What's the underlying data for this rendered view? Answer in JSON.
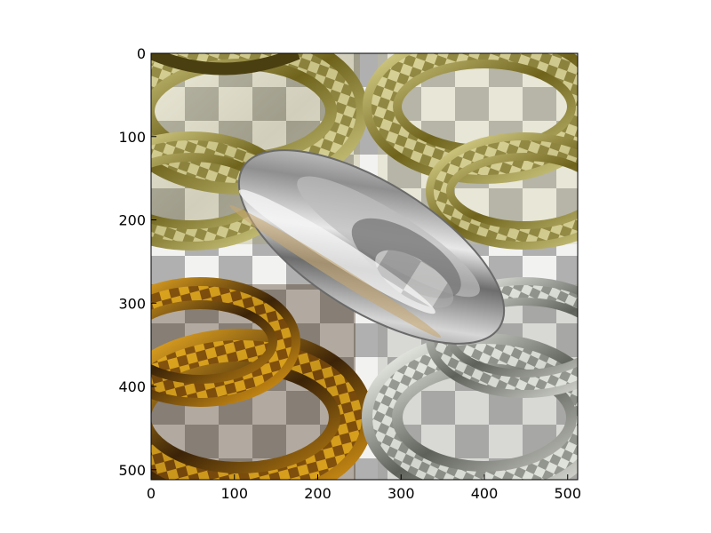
{
  "figure": {
    "kind": "raytraced image displayed on pixel axes",
    "x_axis": {
      "ticks": [
        "0",
        "100",
        "200",
        "300",
        "400",
        "500"
      ],
      "range": [
        0,
        512
      ]
    },
    "y_axis": {
      "ticks": [
        "0",
        "100",
        "200",
        "300",
        "400",
        "500"
      ],
      "range": [
        0,
        512
      ],
      "inverted": true
    },
    "colors": {
      "checker_light": "#f2f2f1",
      "checker_dark": "#b0b0b0",
      "gold_light": "#c8c27a",
      "gold_dark": "#4a3f10",
      "amber": "#d59a18",
      "amber_dark": "#3b2308",
      "silver_light": "#e2e4de",
      "silver_dark": "#6a6c66",
      "chrome": "#9a9a9a"
    },
    "objects": [
      {
        "name": "gold torus",
        "quadrant": "top-left"
      },
      {
        "name": "pale gold torus",
        "quadrant": "top-right"
      },
      {
        "name": "amber torus",
        "quadrant": "bottom-left"
      },
      {
        "name": "silver torus",
        "quadrant": "bottom-right"
      },
      {
        "name": "chrome ellipsoid",
        "quadrant": "center"
      }
    ]
  }
}
